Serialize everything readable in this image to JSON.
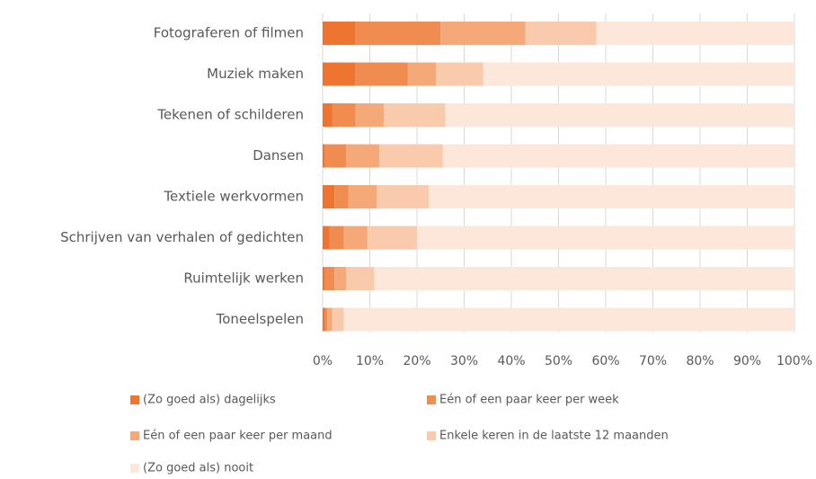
{
  "chart_data": {
    "type": "stacked-bar-horizontal",
    "categories": [
      "Fotograferen of filmen",
      "Muziek maken",
      "Tekenen of schilderen",
      "Dansen",
      "Textiele werkvormen",
      "Schrijven van verhalen of gedichten",
      "Ruimtelijk werken",
      "Toneelspelen"
    ],
    "series": [
      {
        "name": "(Zo goed als) dagelijks",
        "color": "#ee7530",
        "values": [
          7,
          7,
          2,
          0.5,
          2.5,
          1.5,
          0.5,
          0.5
        ]
      },
      {
        "name": "Eén of een paar keer per week",
        "color": "#f18c50",
        "values": [
          18,
          11,
          5,
          4.5,
          3,
          3,
          2,
          0.5
        ]
      },
      {
        "name": "Eén of een paar keer per maand",
        "color": "#f5a878",
        "values": [
          18,
          6,
          6,
          7,
          6,
          5,
          2.5,
          1
        ]
      },
      {
        "name": "Enkele keren in de laatste 12 maanden",
        "color": "#f9caab",
        "values": [
          15,
          10,
          13,
          13.5,
          11,
          10.5,
          6,
          2.5
        ]
      },
      {
        "name": "(Zo goed als) nooit",
        "color": "#fde7da",
        "values": [
          42,
          66,
          74,
          74.5,
          77.5,
          80,
          89,
          95.5
        ]
      }
    ],
    "xlim": [
      0,
      100
    ],
    "xticks": [
      {
        "value": 0,
        "label": "0%"
      },
      {
        "value": 10,
        "label": "10%"
      },
      {
        "value": 20,
        "label": "20%"
      },
      {
        "value": 30,
        "label": "30%"
      },
      {
        "value": 40,
        "label": "40%"
      },
      {
        "value": 50,
        "label": "50%"
      },
      {
        "value": 60,
        "label": "60%"
      },
      {
        "value": 70,
        "label": "70%"
      },
      {
        "value": 80,
        "label": "80%"
      },
      {
        "value": 90,
        "label": "90%"
      },
      {
        "value": 100,
        "label": "100%"
      }
    ],
    "grid": true
  }
}
